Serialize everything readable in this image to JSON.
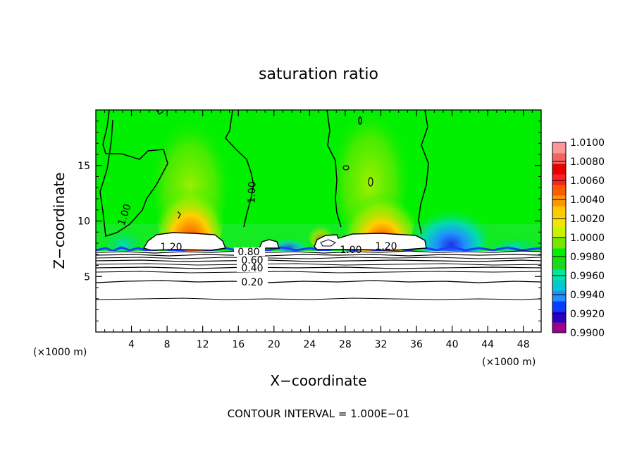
{
  "chart_data": {
    "type": "heatmap",
    "title": "saturation ratio",
    "xlabel": "X−coordinate",
    "ylabel": "Z−coordinate",
    "x_unit": "(×1000 m)",
    "x_unit_left": "(×1000 m)",
    "xlim": [
      0,
      50
    ],
    "ylim": [
      0,
      20
    ],
    "x_ticks": [
      4,
      8,
      12,
      16,
      20,
      24,
      28,
      32,
      36,
      40,
      44,
      48
    ],
    "y_ticks": [
      5,
      10,
      15
    ],
    "footer": "CONTOUR INTERVAL = 1.000E−01",
    "colorbar": {
      "labels": [
        "1.0100",
        "1.0080",
        "1.0060",
        "1.0040",
        "1.0020",
        "1.0000",
        "0.9980",
        "0.9960",
        "0.9940",
        "0.9920",
        "0.9900"
      ],
      "colors": [
        "#9a008c",
        "#2800c8",
        "#0a3cff",
        "#1e90ff",
        "#00c8d0",
        "#00e6a0",
        "#1ed81e",
        "#00f000",
        "#78e600",
        "#c8f000",
        "#f0e600",
        "#ffc800",
        "#ff9600",
        "#ff5a00",
        "#ff2020",
        "#e60000",
        "#f06464",
        "#ff9696"
      ]
    },
    "contour_interval": 0.1,
    "contour_labels": [
      "1.00",
      "1.00",
      "1.00",
      "1.20",
      "1.20",
      "0.80",
      "0.60",
      "0.40",
      "0.20"
    ]
  }
}
